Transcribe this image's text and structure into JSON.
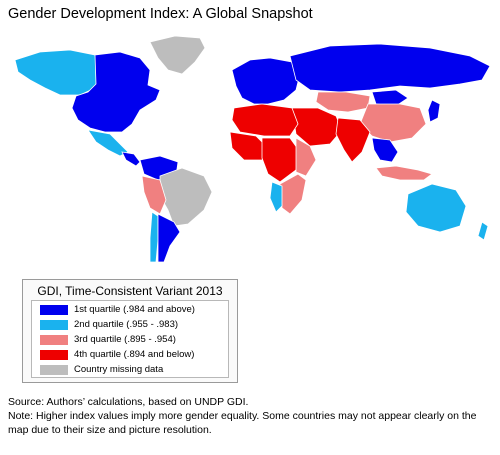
{
  "title": "Gender Development Index: A Global Snapshot",
  "legend": {
    "title": "GDI, Time-Consistent Variant 2013",
    "items": [
      {
        "label": "1st quartile (.984 and above)",
        "color": "#0000ee"
      },
      {
        "label": "2nd quartile (.955 - .983)",
        "color": "#1ab2ee"
      },
      {
        "label": "3rd quartile (.895 - .954)",
        "color": "#f08080"
      },
      {
        "label": "4th quartile (.894 and below)",
        "color": "#ee0000"
      },
      {
        "label": "Country missing data",
        "color": "#bdbdbd"
      }
    ]
  },
  "notes": {
    "source": "Source: Authors’ calculations, based on UNDP GDI.",
    "note": "Note: Higher index values imply more gender equality. Some countries may not appear clearly on the map due to their size and picture resolution."
  },
  "map": {
    "regions": [
      {
        "name": "north-america",
        "color": "#0000ee"
      },
      {
        "name": "canada-west",
        "color": "#1ab2ee"
      },
      {
        "name": "greenland",
        "color": "#bdbdbd"
      },
      {
        "name": "mexico",
        "color": "#1ab2ee"
      },
      {
        "name": "central-america",
        "color": "#0000ee"
      },
      {
        "name": "colombia-venezuela",
        "color": "#0000ee"
      },
      {
        "name": "brazil",
        "color": "#bdbdbd"
      },
      {
        "name": "peru-bolivia",
        "color": "#f08080"
      },
      {
        "name": "chile",
        "color": "#1ab2ee"
      },
      {
        "name": "argentina",
        "color": "#0000ee"
      },
      {
        "name": "europe",
        "color": "#0000ee"
      },
      {
        "name": "russia",
        "color": "#0000ee"
      },
      {
        "name": "north-africa",
        "color": "#ee0000"
      },
      {
        "name": "west-africa",
        "color": "#ee0000"
      },
      {
        "name": "central-africa",
        "color": "#ee0000"
      },
      {
        "name": "east-africa",
        "color": "#f08080"
      },
      {
        "name": "southern-africa",
        "color": "#f08080"
      },
      {
        "name": "namibia",
        "color": "#1ab2ee"
      },
      {
        "name": "middle-east",
        "color": "#ee0000"
      },
      {
        "name": "central-asia",
        "color": "#f08080"
      },
      {
        "name": "india",
        "color": "#ee0000"
      },
      {
        "name": "china",
        "color": "#f08080"
      },
      {
        "name": "mongolia",
        "color": "#0000ee"
      },
      {
        "name": "southeast-asia",
        "color": "#0000ee"
      },
      {
        "name": "indonesia",
        "color": "#f08080"
      },
      {
        "name": "japan",
        "color": "#0000ee"
      },
      {
        "name": "australia",
        "color": "#1ab2ee"
      },
      {
        "name": "new-zealand",
        "color": "#1ab2ee"
      }
    ]
  }
}
